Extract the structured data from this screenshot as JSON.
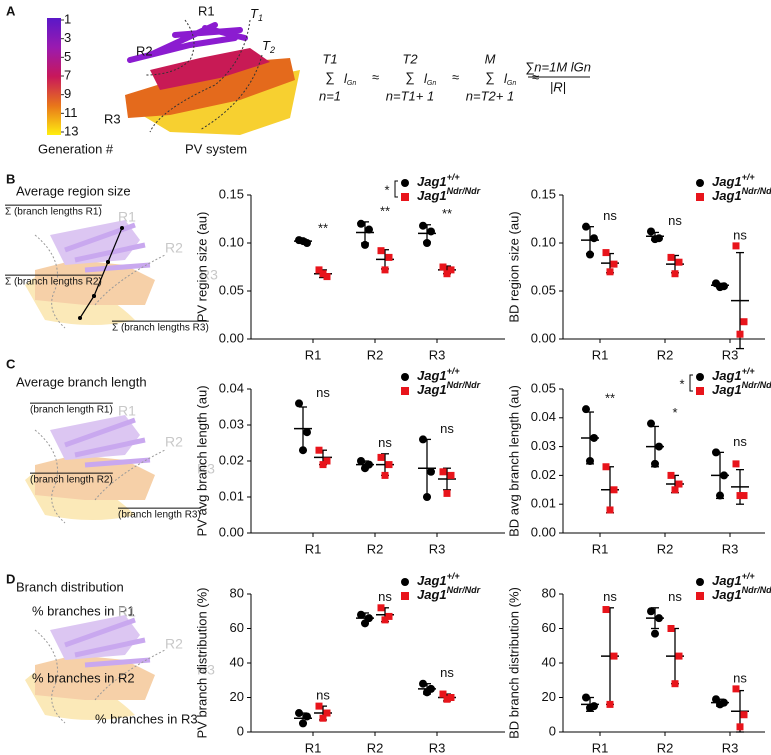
{
  "panel_a": {
    "letter": "A",
    "colorbar": {
      "ticks": [
        1,
        3,
        5,
        7,
        9,
        11,
        13
      ],
      "label": "Generation #"
    },
    "tree_labels": {
      "r1": "R1",
      "r2": "R2",
      "r3": "R3",
      "t1": "T",
      "t1_sub": "1",
      "t2": "T",
      "t2_sub": "2",
      "caption": "PV system"
    },
    "formula": {
      "sums": [
        {
          "upper": "T1",
          "lower": "n=1"
        },
        {
          "upper": "T2",
          "lower": "n=T1+ 1"
        },
        {
          "upper": "M",
          "lower": "n=T2+ 1"
        }
      ],
      "sigma": "∑",
      "term": "l",
      "term_sub": "Gn",
      "approx": "≈",
      "numerator": "∑n=1M lGn",
      "denominator": "|R|"
    }
  },
  "panel_b": {
    "letter": "B",
    "title": "Average region size",
    "labels": [
      "Σ (branch lengths R1)",
      "Σ (branch lengths R2)",
      "Σ (branch lengths R3)"
    ],
    "regions": [
      "R1",
      "R2",
      "R3"
    ]
  },
  "panel_c": {
    "letter": "C",
    "title": "Average branch length",
    "labels": [
      "(branch length R1)",
      "(branch length R2)",
      "(branch length R3)"
    ],
    "regions": [
      "R1",
      "R2",
      "R3"
    ]
  },
  "panel_d": {
    "letter": "D",
    "title": "Branch distribution",
    "labels": [
      "% branches in R1",
      "% branches in R2",
      "% branches in R3"
    ],
    "regions": [
      "R1",
      "R2",
      "R3"
    ]
  },
  "chart_data": [
    {
      "type": "dot",
      "y_label": "PV region size (au)",
      "categories": [
        "R1",
        "R2",
        "R3"
      ],
      "ylim": [
        0,
        0.15
      ],
      "yticks": [
        {
          "value": 0,
          "label": "0.00"
        },
        {
          "value": 0.05,
          "label": "0.05"
        },
        {
          "value": 0.1,
          "label": "0.10"
        },
        {
          "value": 0.15,
          "label": "0.15"
        }
      ],
      "legend_annotation": "*",
      "annotations": [
        "**",
        "**",
        "**"
      ],
      "series": [
        {
          "name": "Jag1",
          "genotype": "+/+",
          "color": "#000000",
          "points": [
            [
              0.103,
              0.1,
              0.102
            ],
            [
              0.12,
              0.114,
              0.098
            ],
            [
              0.118,
              0.112,
              0.1
            ]
          ],
          "mean": [
            0.102,
            0.111,
            0.11
          ],
          "sd": [
            0.002,
            0.011,
            0.009
          ]
        },
        {
          "name": "Jag1",
          "genotype": "Ndr/Ndr",
          "color": "#e8141b",
          "points": [
            [
              0.072,
              0.065,
              0.068
            ],
            [
              0.092,
              0.085,
              0.072
            ],
            [
              0.075,
              0.072,
              0.068
            ]
          ],
          "mean": [
            0.068,
            0.083,
            0.072
          ],
          "sd": [
            0.004,
            0.01,
            0.004
          ]
        }
      ]
    },
    {
      "type": "dot",
      "y_label": "BD region size (au)",
      "categories": [
        "R1",
        "R2",
        "R3"
      ],
      "ylim": [
        0,
        0.15
      ],
      "yticks": [
        {
          "value": 0,
          "label": "0.00"
        },
        {
          "value": 0.05,
          "label": "0.05"
        },
        {
          "value": 0.1,
          "label": "0.10"
        },
        {
          "value": 0.15,
          "label": "0.15"
        }
      ],
      "annotations": [
        "ns",
        "ns",
        "ns"
      ],
      "series": [
        {
          "name": "Jag1",
          "genotype": "+/+",
          "color": "#000000",
          "points": [
            [
              0.117,
              0.105,
              0.088
            ],
            [
              0.112,
              0.105,
              0.104
            ],
            [
              0.058,
              0.055,
              0.054
            ]
          ],
          "mean": [
            0.103,
            0.107,
            0.056
          ],
          "sd": [
            0.014,
            0.004,
            0.002
          ]
        },
        {
          "name": "Jag1",
          "genotype": "Ndr/Ndr",
          "color": "#e8141b",
          "points": [
            [
              0.09,
              0.078,
              0.07
            ],
            [
              0.085,
              0.08,
              0.068
            ],
            [
              0.097,
              0.018,
              0.005
            ]
          ],
          "mean": [
            0.079,
            0.078,
            0.04
          ],
          "sd": [
            0.01,
            0.009,
            0.05
          ]
        }
      ]
    },
    {
      "type": "dot",
      "y_label": "PV avg branch length (au)",
      "categories": [
        "R1",
        "R2",
        "R3"
      ],
      "ylim": [
        0,
        0.04
      ],
      "yticks": [
        {
          "value": 0,
          "label": "0.00"
        },
        {
          "value": 0.01,
          "label": "0.01"
        },
        {
          "value": 0.02,
          "label": "0.02"
        },
        {
          "value": 0.03,
          "label": "0.03"
        },
        {
          "value": 0.04,
          "label": "0.04"
        }
      ],
      "annotations": [
        "ns",
        "ns",
        "ns"
      ],
      "series": [
        {
          "name": "Jag1",
          "genotype": "+/+",
          "color": "#000000",
          "points": [
            [
              0.036,
              0.028,
              0.023
            ],
            [
              0.02,
              0.019,
              0.018
            ],
            [
              0.026,
              0.017,
              0.01
            ]
          ],
          "mean": [
            0.029,
            0.019,
            0.018
          ],
          "sd": [
            0.006,
            0.001,
            0.008
          ]
        },
        {
          "name": "Jag1",
          "genotype": "Ndr/Ndr",
          "color": "#e8141b",
          "points": [
            [
              0.023,
              0.02,
              0.019
            ],
            [
              0.021,
              0.019,
              0.016
            ],
            [
              0.017,
              0.016,
              0.011
            ]
          ],
          "mean": [
            0.021,
            0.019,
            0.015
          ],
          "sd": [
            0.002,
            0.003,
            0.003
          ]
        }
      ]
    },
    {
      "type": "dot",
      "y_label": "BD avg branch length (au)",
      "categories": [
        "R1",
        "R2",
        "R3"
      ],
      "ylim": [
        0,
        0.05
      ],
      "yticks": [
        {
          "value": 0,
          "label": "0.00"
        },
        {
          "value": 0.01,
          "label": "0.01"
        },
        {
          "value": 0.02,
          "label": "0.02"
        },
        {
          "value": 0.03,
          "label": "0.03"
        },
        {
          "value": 0.04,
          "label": "0.04"
        },
        {
          "value": 0.05,
          "label": "0.05"
        }
      ],
      "legend_annotation": "*",
      "annotations": [
        "**",
        "*",
        "ns"
      ],
      "series": [
        {
          "name": "Jag1",
          "genotype": "+/+",
          "color": "#000000",
          "points": [
            [
              0.043,
              0.033,
              0.025
            ],
            [
              0.038,
              0.03,
              0.024
            ],
            [
              0.028,
              0.02,
              0.013
            ]
          ],
          "mean": [
            0.033,
            0.03,
            0.02
          ],
          "sd": [
            0.009,
            0.007,
            0.008
          ]
        },
        {
          "name": "Jag1",
          "genotype": "Ndr/Ndr",
          "color": "#e8141b",
          "points": [
            [
              0.023,
              0.015,
              0.008
            ],
            [
              0.02,
              0.017,
              0.015
            ],
            [
              0.024,
              0.013,
              0.013
            ]
          ],
          "mean": [
            0.015,
            0.017,
            0.016
          ],
          "sd": [
            0.008,
            0.003,
            0.006
          ]
        }
      ]
    },
    {
      "type": "dot",
      "y_label": "PV branch distribution (%)",
      "categories": [
        "R1",
        "R2",
        "R3"
      ],
      "ylim": [
        0,
        80
      ],
      "yticks": [
        0,
        20,
        40,
        60,
        80
      ],
      "annotations": [
        "ns",
        "ns",
        "ns"
      ],
      "series": [
        {
          "name": "Jag1",
          "genotype": "+/+",
          "color": "#000000",
          "points": [
            [
              11,
              9,
              5
            ],
            [
              68,
              66,
              63
            ],
            [
              28,
              25,
              23
            ]
          ],
          "mean": [
            8,
            66,
            25
          ],
          "sd": [
            3,
            3,
            3
          ]
        },
        {
          "name": "Jag1",
          "genotype": "Ndr/Ndr",
          "color": "#e8141b",
          "points": [
            [
              15,
              11,
              8
            ],
            [
              72,
              67,
              65
            ],
            [
              22,
              20,
              19
            ]
          ],
          "mean": [
            11,
            68,
            20
          ],
          "sd": [
            4,
            4,
            2
          ]
        }
      ]
    },
    {
      "type": "dot",
      "y_label": "BD branch distribution (%)",
      "categories": [
        "R1",
        "R2",
        "R3"
      ],
      "ylim": [
        0,
        80
      ],
      "yticks": [
        0,
        20,
        40,
        60,
        80
      ],
      "annotations": [
        "ns",
        "ns",
        "ns"
      ],
      "series": [
        {
          "name": "Jag1",
          "genotype": "+/+",
          "color": "#000000",
          "points": [
            [
              20,
              15,
              14
            ],
            [
              70,
              66,
              57
            ],
            [
              19,
              17,
              16
            ]
          ],
          "mean": [
            16,
            66,
            17
          ],
          "sd": [
            4,
            6,
            2
          ]
        },
        {
          "name": "Jag1",
          "genotype": "Ndr/Ndr",
          "color": "#e8141b",
          "points": [
            [
              71,
              44,
              16
            ],
            [
              60,
              44,
              28
            ],
            [
              25,
              10,
              3
            ]
          ],
          "mean": [
            44,
            44,
            12
          ],
          "sd": [
            28,
            16,
            12
          ]
        }
      ]
    }
  ]
}
